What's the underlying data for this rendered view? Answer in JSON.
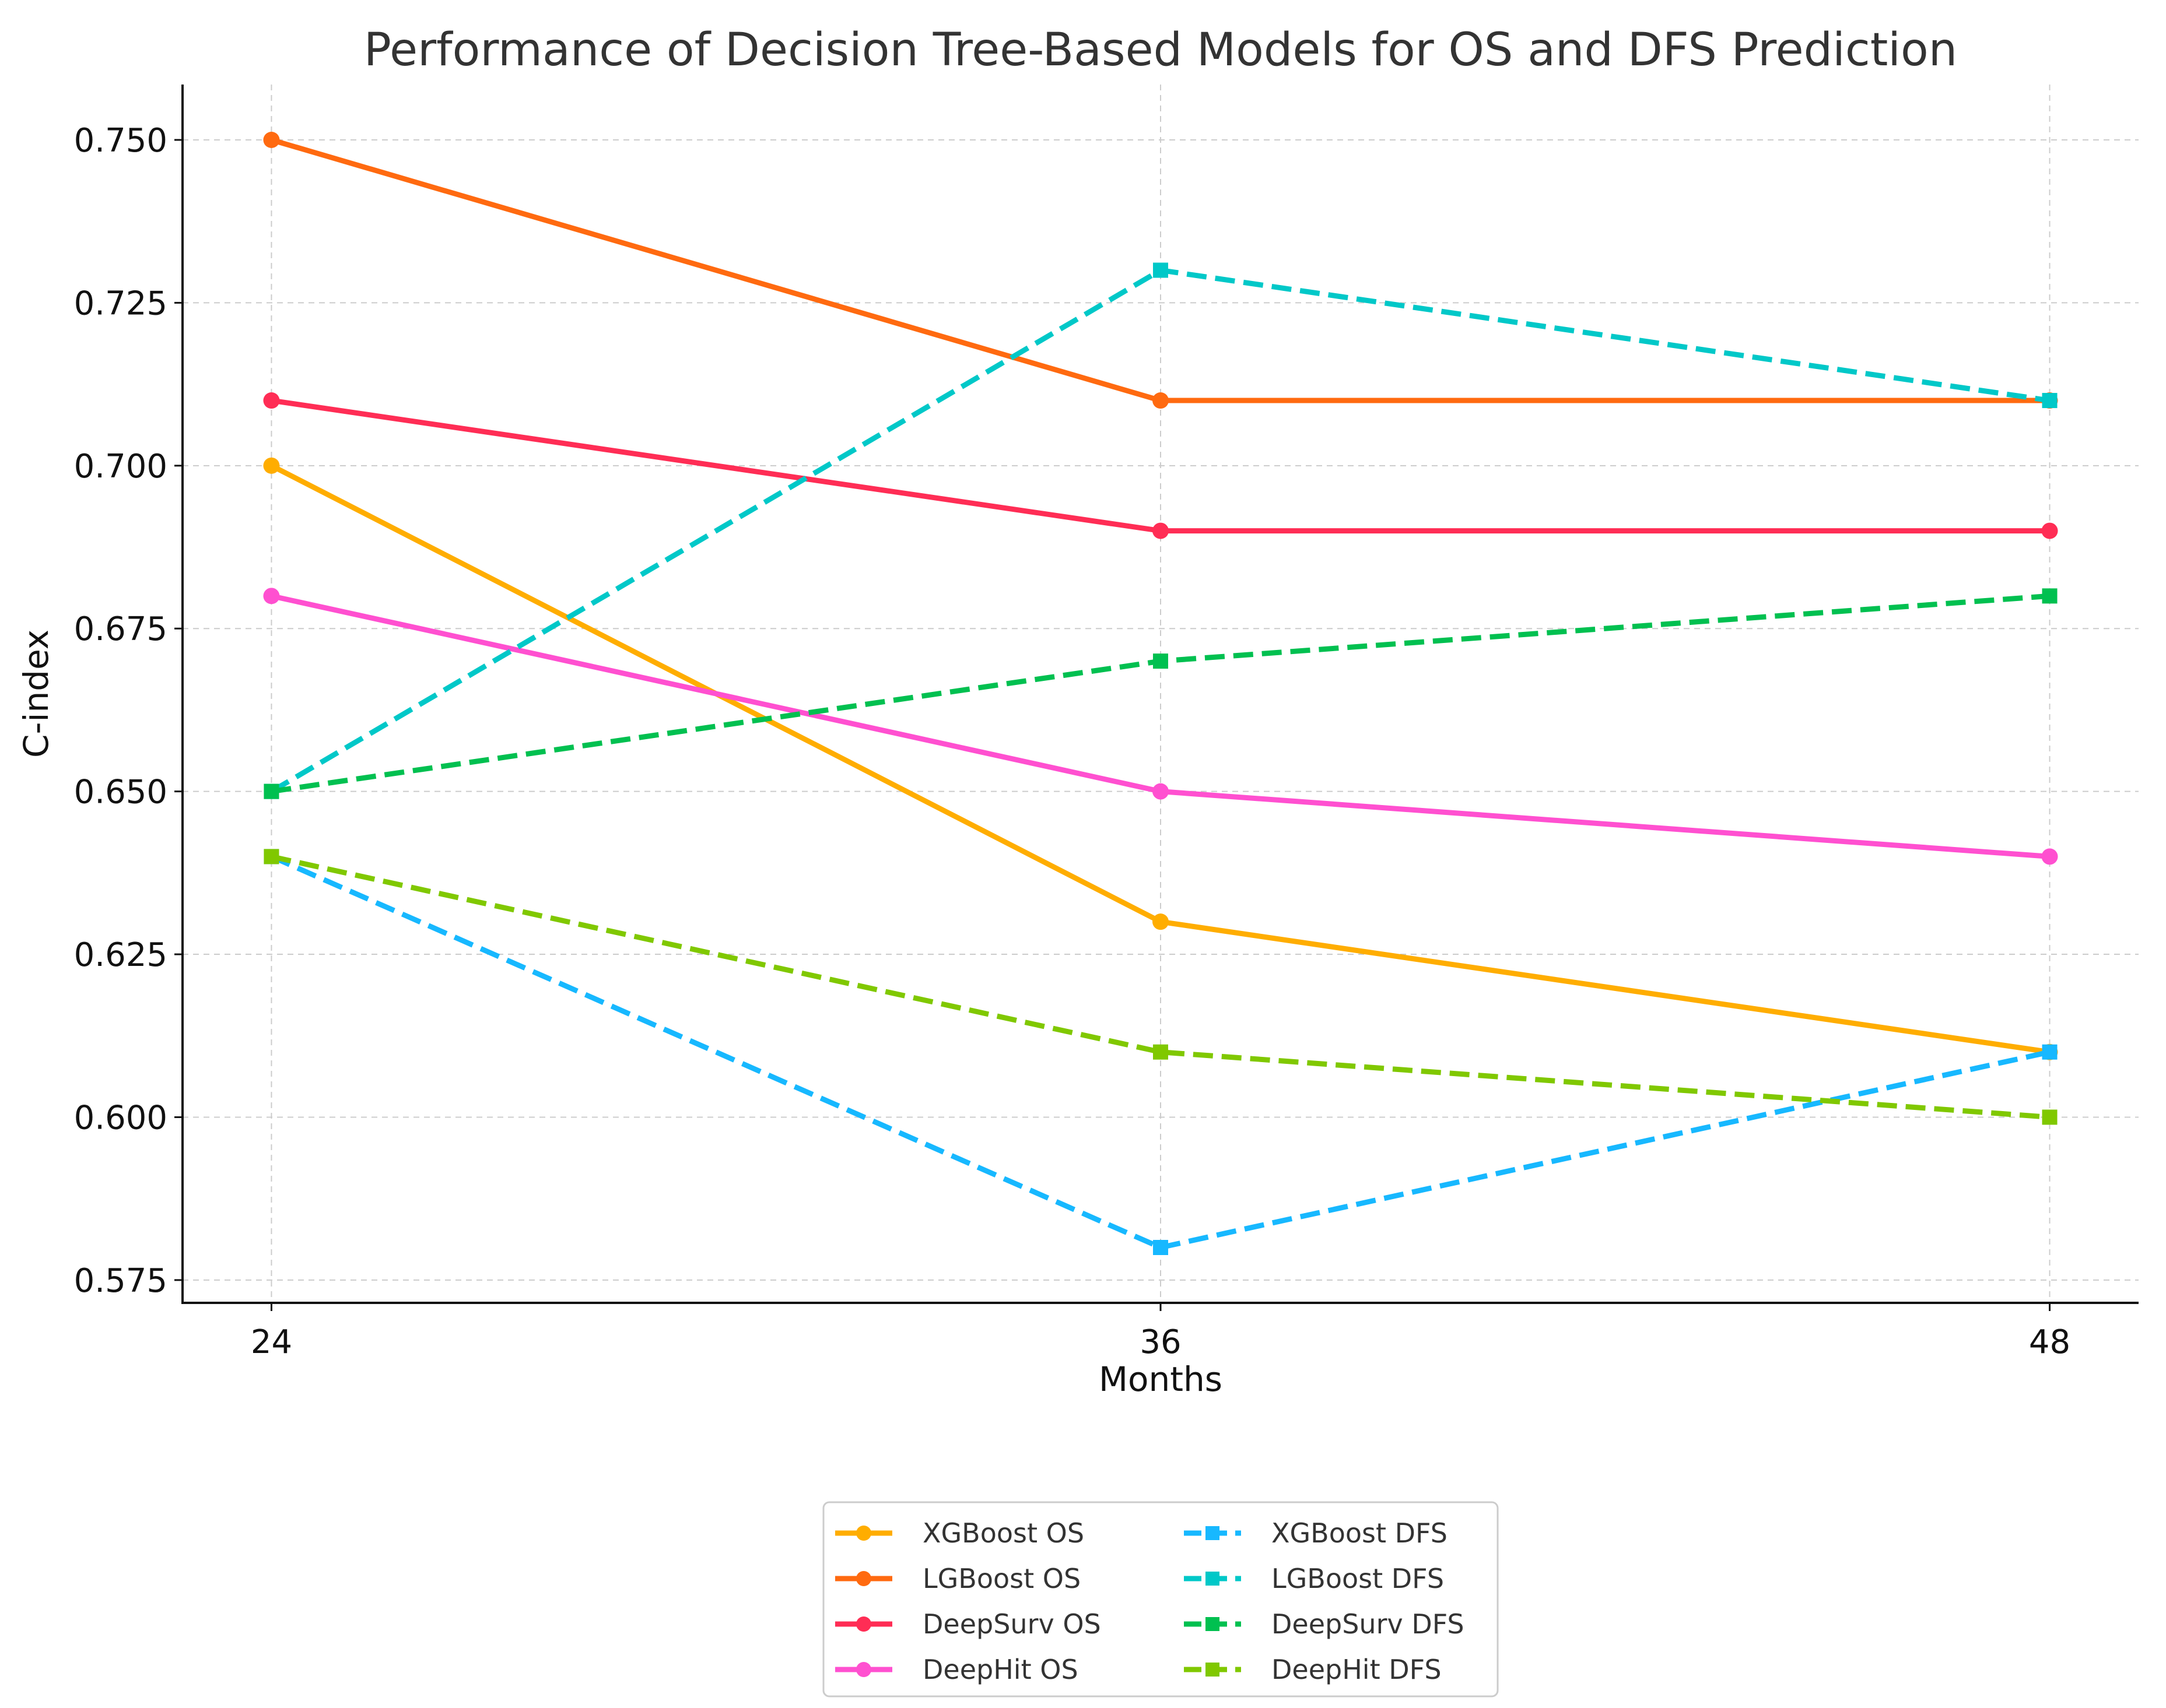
{
  "chart_data": {
    "type": "line",
    "title": "Performance of Decision Tree-Based Models for OS and DFS Prediction",
    "xlabel": "Months",
    "ylabel": "C-index",
    "x": [
      24,
      36,
      48
    ],
    "x_tick_labels": [
      "24",
      "36",
      "48"
    ],
    "xlim": [
      22.8,
      49.2
    ],
    "ylim": [
      0.5715,
      0.7585
    ],
    "y_ticks": [
      0.575,
      0.6,
      0.625,
      0.65,
      0.675,
      0.7,
      0.725,
      0.75
    ],
    "y_tick_labels": [
      "0.575",
      "0.600",
      "0.625",
      "0.650",
      "0.675",
      "0.700",
      "0.725",
      "0.750"
    ],
    "grid": true,
    "legend_position": "bottom-center",
    "series": [
      {
        "name": "XGBoost OS",
        "values": [
          0.7,
          0.63,
          0.61
        ],
        "color": "#ffad00",
        "line_style": "solid",
        "marker": "circle"
      },
      {
        "name": "LGBoost OS",
        "values": [
          0.75,
          0.71,
          0.71
        ],
        "color": "#ff6a10",
        "line_style": "solid",
        "marker": "circle"
      },
      {
        "name": "DeepSurv OS",
        "values": [
          0.71,
          0.69,
          0.69
        ],
        "color": "#ff2d55",
        "line_style": "solid",
        "marker": "circle"
      },
      {
        "name": "DeepHit OS",
        "values": [
          0.68,
          0.65,
          0.64
        ],
        "color": "#ff50d0",
        "line_style": "solid",
        "marker": "circle"
      },
      {
        "name": "XGBoost DFS",
        "values": [
          0.64,
          0.58,
          0.61
        ],
        "color": "#17b8ff",
        "line_style": "dashed",
        "marker": "square"
      },
      {
        "name": "LGBoost DFS",
        "values": [
          0.65,
          0.73,
          0.71
        ],
        "color": "#00c8c8",
        "line_style": "dashed",
        "marker": "square"
      },
      {
        "name": "DeepSurv DFS",
        "values": [
          0.65,
          0.67,
          0.68
        ],
        "color": "#00c050",
        "line_style": "dashed",
        "marker": "square"
      },
      {
        "name": "DeepHit DFS",
        "values": [
          0.64,
          0.61,
          0.6
        ],
        "color": "#80c800",
        "line_style": "dashed",
        "marker": "square"
      }
    ]
  }
}
